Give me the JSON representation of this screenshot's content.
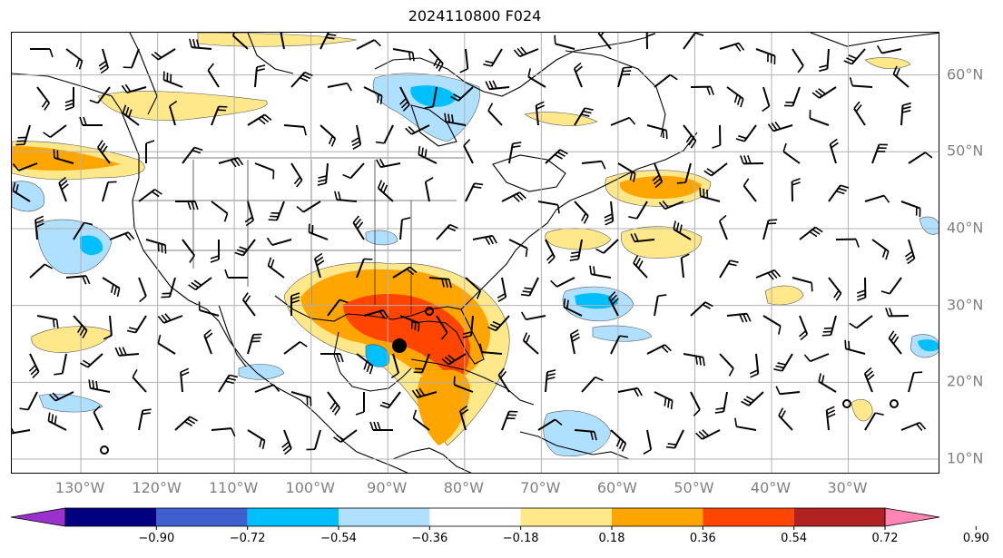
{
  "title": "2024110800 F024",
  "map": {
    "lon_labels": [
      {
        "text": "130°W",
        "lon": -130
      },
      {
        "text": "120°W",
        "lon": -120
      },
      {
        "text": "110°W",
        "lon": -110
      },
      {
        "text": "100°W",
        "lon": -100
      },
      {
        "text": "90°W",
        "lon": -90
      },
      {
        "text": "80°W",
        "lon": -80
      },
      {
        "text": "70°W",
        "lon": -70
      },
      {
        "text": "60°W",
        "lon": -60
      },
      {
        "text": "50°W",
        "lon": -50
      },
      {
        "text": "40°W",
        "lon": -40
      },
      {
        "text": "30°W",
        "lon": -30
      }
    ],
    "lat_labels": [
      {
        "text": "60°N",
        "lat": 60
      },
      {
        "text": "50°N",
        "lat": 50
      },
      {
        "text": "40°N",
        "lat": 40
      },
      {
        "text": "30°N",
        "lat": 30
      },
      {
        "text": "20°N",
        "lat": 20
      },
      {
        "text": "10°N",
        "lat": 10
      }
    ],
    "extent": {
      "lon_min": -139,
      "lon_max": -18,
      "lat_min": 8,
      "lat_max": 65.5
    },
    "grid_color": "#b0b0b0",
    "label_color": "#808080"
  },
  "colorbar": {
    "levels": [
      "−0.90",
      "−0.72",
      "−0.54",
      "−0.36",
      "−0.18",
      "0.18",
      "0.36",
      "0.54",
      "0.72",
      "0.90"
    ],
    "colors": [
      "#9932cc",
      "#000080",
      "#3f5fcf",
      "#00bfff",
      "#b0e0ff",
      "#ffffff",
      "#ffe88a",
      "#ffa500",
      "#ff4500",
      "#b22222",
      "#ff85b5"
    ]
  }
}
